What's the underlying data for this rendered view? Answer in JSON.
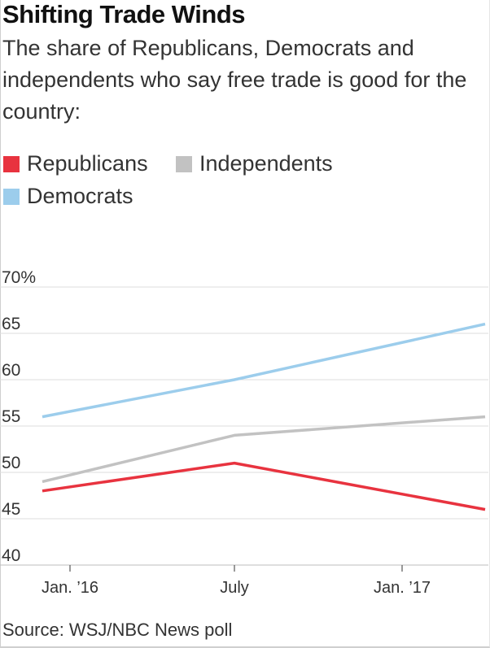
{
  "chart_data": {
    "type": "line",
    "title": "Shifting Trade Winds",
    "subtitle": "The share of Republicans, Democrats and independents who say free trade is good for the country:",
    "x_points": [
      "Dec. 2015",
      "July 2016",
      "Mar. 2017"
    ],
    "x_tick_labels": [
      "Jan. ’16",
      "July",
      "Jan. ’17"
    ],
    "y_tick_labels": [
      "70%",
      "65",
      "60",
      "55",
      "50",
      "45",
      "40"
    ],
    "ylim": [
      40,
      70
    ],
    "series": [
      {
        "name": "Republicans",
        "color": "#e8333f",
        "values": [
          48,
          51,
          46
        ]
      },
      {
        "name": "Independents",
        "color": "#c2c2c2",
        "values": [
          49,
          54,
          56
        ]
      },
      {
        "name": "Democrats",
        "color": "#9ccdec",
        "values": [
          56,
          60,
          66
        ]
      }
    ],
    "source": "Source: WSJ/NBC News poll"
  }
}
